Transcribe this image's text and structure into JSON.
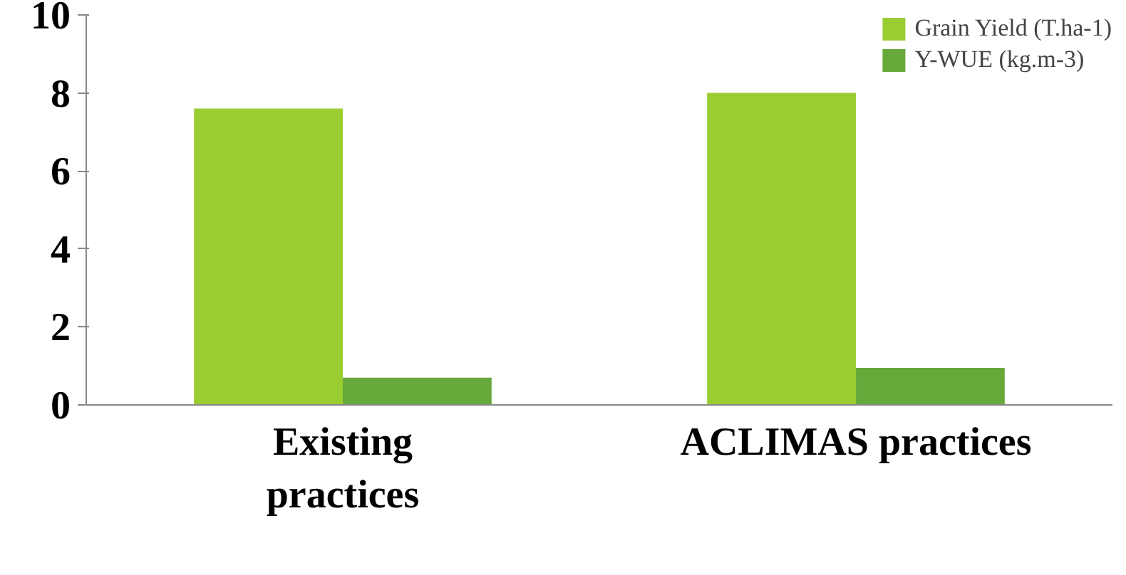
{
  "chart_data": {
    "type": "bar",
    "categories": [
      "Existing practices",
      "ACLIMAS practices"
    ],
    "series": [
      {
        "name": "Grain Yield (T.ha-1)",
        "color": "#9acd32",
        "values": [
          7.6,
          8.0
        ]
      },
      {
        "name": "Y-WUE (kg.m-3)",
        "color": "#66a83a",
        "values": [
          0.7,
          0.95
        ]
      }
    ],
    "ylim": [
      0,
      10
    ],
    "yticks": [
      0,
      2,
      4,
      6,
      8,
      10
    ],
    "grid": false,
    "legend": "top right"
  }
}
